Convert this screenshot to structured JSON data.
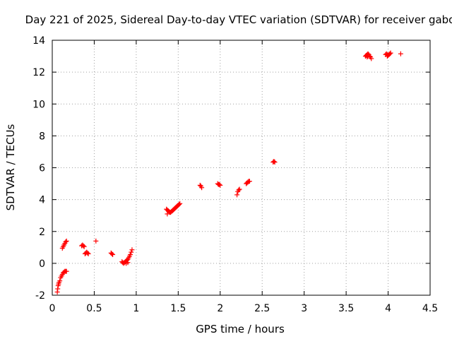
{
  "chart_data": {
    "type": "scatter",
    "title": "Day 221 of 2025, Sidereal Day-to-day VTEC variation (SDTVAR) for receiver gabo",
    "xlabel": "GPS time / hours",
    "ylabel": "SDTVAR / TECUs",
    "xlim": [
      0,
      4.5
    ],
    "ylim": [
      -2,
      14
    ],
    "xticks": [
      0,
      0.5,
      1,
      1.5,
      2,
      2.5,
      3,
      3.5,
      4,
      4.5
    ],
    "xtick_labels": [
      "0",
      "0.5",
      "1",
      "1.5",
      "2",
      "2.5",
      "3",
      "3.5",
      "4",
      "4.5"
    ],
    "yticks": [
      -2,
      0,
      2,
      4,
      6,
      8,
      10,
      12,
      14
    ],
    "ytick_labels": [
      "-2",
      "0",
      "2",
      "4",
      "6",
      "8",
      "10",
      "12",
      "14"
    ],
    "grid": true,
    "marker": "+",
    "color": "#ff0000",
    "series": [
      {
        "name": "SDTVAR",
        "points": [
          [
            0.06,
            -1.8
          ],
          [
            0.065,
            -1.6
          ],
          [
            0.07,
            -1.4
          ],
          [
            0.075,
            -1.3
          ],
          [
            0.08,
            -1.2
          ],
          [
            0.09,
            -1.1
          ],
          [
            0.1,
            -0.9
          ],
          [
            0.11,
            -0.8
          ],
          [
            0.12,
            -0.7
          ],
          [
            0.13,
            -0.6
          ],
          [
            0.14,
            -0.55
          ],
          [
            0.15,
            -0.5
          ],
          [
            0.16,
            -0.5
          ],
          [
            0.17,
            -0.5
          ],
          [
            0.12,
            0.95
          ],
          [
            0.13,
            1.05
          ],
          [
            0.14,
            1.15
          ],
          [
            0.15,
            1.25
          ],
          [
            0.16,
            1.35
          ],
          [
            0.17,
            1.4
          ],
          [
            0.35,
            1.1
          ],
          [
            0.36,
            1.15
          ],
          [
            0.37,
            1.1
          ],
          [
            0.38,
            1.05
          ],
          [
            0.39,
            0.6
          ],
          [
            0.4,
            0.65
          ],
          [
            0.41,
            0.7
          ],
          [
            0.42,
            0.65
          ],
          [
            0.43,
            0.6
          ],
          [
            0.52,
            1.4
          ],
          [
            0.7,
            0.65
          ],
          [
            0.71,
            0.6
          ],
          [
            0.72,
            0.55
          ],
          [
            0.83,
            0.1
          ],
          [
            0.84,
            0.05
          ],
          [
            0.85,
            0.0
          ],
          [
            0.86,
            0.05
          ],
          [
            0.87,
            0.1
          ],
          [
            0.88,
            0.15
          ],
          [
            0.89,
            0.2
          ],
          [
            0.9,
            0.25
          ],
          [
            0.91,
            0.35
          ],
          [
            0.92,
            0.45
          ],
          [
            0.93,
            0.55
          ],
          [
            0.94,
            0.7
          ],
          [
            0.95,
            0.85
          ],
          [
            0.88,
            0.0
          ],
          [
            0.9,
            0.05
          ],
          [
            1.36,
            3.4
          ],
          [
            1.37,
            3.35
          ],
          [
            1.38,
            3.3
          ],
          [
            1.39,
            3.25
          ],
          [
            1.4,
            3.2
          ],
          [
            1.41,
            3.2
          ],
          [
            1.42,
            3.25
          ],
          [
            1.43,
            3.3
          ],
          [
            1.44,
            3.35
          ],
          [
            1.45,
            3.4
          ],
          [
            1.46,
            3.45
          ],
          [
            1.47,
            3.5
          ],
          [
            1.48,
            3.55
          ],
          [
            1.49,
            3.6
          ],
          [
            1.5,
            3.65
          ],
          [
            1.51,
            3.7
          ],
          [
            1.52,
            3.75
          ],
          [
            1.37,
            3.1
          ],
          [
            1.76,
            4.9
          ],
          [
            1.77,
            4.85
          ],
          [
            1.78,
            4.75
          ],
          [
            1.97,
            5.0
          ],
          [
            1.98,
            4.95
          ],
          [
            1.99,
            4.95
          ],
          [
            2.0,
            4.9
          ],
          [
            2.2,
            4.3
          ],
          [
            2.21,
            4.5
          ],
          [
            2.22,
            4.6
          ],
          [
            2.23,
            4.65
          ],
          [
            2.31,
            5.0
          ],
          [
            2.32,
            5.05
          ],
          [
            2.33,
            5.1
          ],
          [
            2.34,
            5.15
          ],
          [
            2.35,
            5.15
          ],
          [
            2.63,
            6.35
          ],
          [
            2.64,
            6.4
          ],
          [
            2.65,
            6.35
          ],
          [
            3.73,
            13.0
          ],
          [
            3.74,
            13.05
          ],
          [
            3.75,
            13.1
          ],
          [
            3.76,
            13.15
          ],
          [
            3.77,
            13.1
          ],
          [
            3.78,
            13.0
          ],
          [
            3.79,
            12.95
          ],
          [
            3.8,
            12.85
          ],
          [
            3.75,
            12.95
          ],
          [
            3.76,
            13.0
          ],
          [
            3.97,
            13.1
          ],
          [
            3.98,
            13.15
          ],
          [
            3.99,
            13.1
          ],
          [
            4.0,
            13.05
          ],
          [
            4.01,
            13.1
          ],
          [
            4.02,
            13.15
          ],
          [
            4.03,
            13.2
          ],
          [
            3.99,
            13.0
          ],
          [
            4.15,
            13.15
          ]
        ]
      }
    ]
  }
}
